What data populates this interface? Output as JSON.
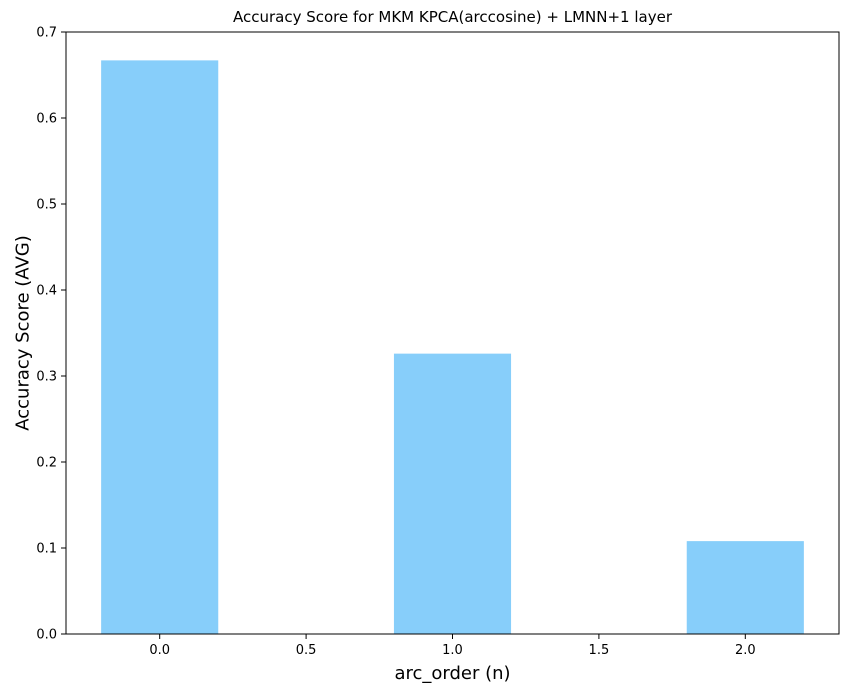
{
  "chart_data": {
    "type": "bar",
    "title": "Accuracy Score for MKM KPCA(arccosine) + LMNN+1 layer",
    "xlabel": "arc_order (n)",
    "ylabel": "Accuracy Score (AVG)",
    "x": [
      0,
      1,
      2
    ],
    "values": [
      0.667,
      0.326,
      0.108
    ],
    "bar_width": 0.4,
    "xlim": [
      -0.32,
      2.32
    ],
    "ylim": [
      0,
      0.7
    ],
    "xticks": [
      0.0,
      0.5,
      1.0,
      1.5,
      2.0
    ],
    "xtick_labels": [
      "0.0",
      "0.5",
      "1.0",
      "1.5",
      "2.0"
    ],
    "yticks": [
      0.0,
      0.1,
      0.2,
      0.3,
      0.4,
      0.5,
      0.6,
      0.7
    ],
    "ytick_labels": [
      "0.0",
      "0.1",
      "0.2",
      "0.3",
      "0.4",
      "0.5",
      "0.6",
      "0.7"
    ],
    "grid": false,
    "bar_color": "#87CEFA",
    "axis_color": "#000000"
  }
}
